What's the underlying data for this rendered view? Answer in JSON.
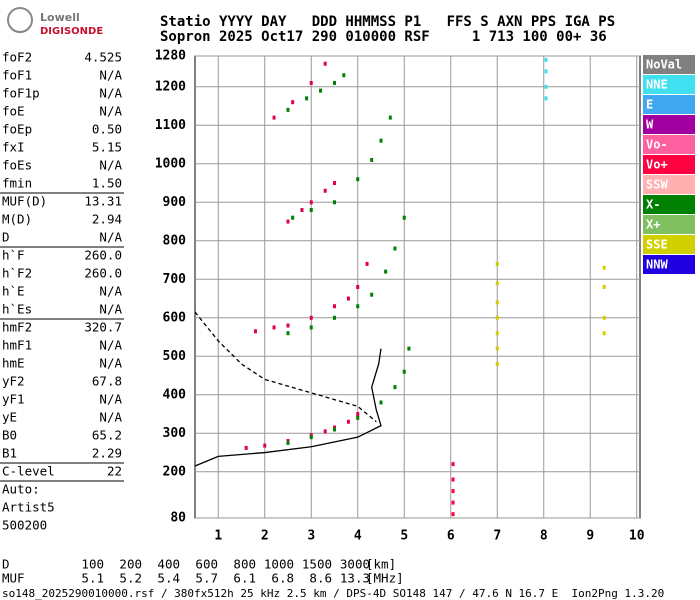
{
  "header": {
    "logo_top": "Lowell",
    "logo_bottom": "DIGISONDE",
    "line1": "Statio YYYY DAY   DDD HHMMSS P1   FFS S AXN PPS IGA PS",
    "line2": "Sopron 2025 Oct17 290 010000 RSF     1 713 100 00+ 36"
  },
  "parameters": [
    [
      [
        "foF2",
        "4.525"
      ],
      [
        "foF1",
        "N/A"
      ],
      [
        "foF1p",
        "N/A"
      ],
      [
        "foE",
        "N/A"
      ],
      [
        "foEp",
        "0.50"
      ],
      [
        "fxI",
        "5.15"
      ],
      [
        "foEs",
        "N/A"
      ],
      [
        "fmin",
        "1.50"
      ]
    ],
    [
      [
        "MUF(D)",
        "13.31"
      ],
      [
        "M(D)",
        "2.94"
      ],
      [
        "D",
        "N/A"
      ]
    ],
    [
      [
        "h`F",
        "260.0"
      ],
      [
        "h`F2",
        "260.0"
      ],
      [
        "h`E",
        "N/A"
      ],
      [
        "h`Es",
        "N/A"
      ]
    ],
    [
      [
        "hmF2",
        "320.7"
      ],
      [
        "hmF1",
        "N/A"
      ],
      [
        "hmE",
        "N/A"
      ],
      [
        "yF2",
        "67.8"
      ],
      [
        "yF1",
        "N/A"
      ],
      [
        "yE",
        "N/A"
      ],
      [
        "B0",
        "65.2"
      ],
      [
        "B1",
        "2.29"
      ]
    ],
    [
      [
        "C-level",
        "22"
      ]
    ]
  ],
  "operator": [
    "Auto:",
    "Artist5",
    "500200"
  ],
  "chart_data": {
    "type": "scatter",
    "xlim": [
      0.5,
      10.07
    ],
    "ylim": [
      80,
      1280
    ],
    "xticks": [
      1,
      2,
      3,
      4,
      5,
      6,
      7,
      8,
      9,
      10
    ],
    "yticks": [
      80,
      200,
      300,
      400,
      500,
      600,
      700,
      800,
      900,
      1000,
      1100,
      1200,
      1280
    ],
    "grid": true,
    "legend": [
      {
        "label": "NoVal",
        "color": "#808080"
      },
      {
        "label": "NNE",
        "color": "#40e0f0"
      },
      {
        "label": "E",
        "color": "#40a8f0"
      },
      {
        "label": "W",
        "color": "#a000a0"
      },
      {
        "label": "Vo-",
        "color": "#ff60a0"
      },
      {
        "label": "Vo+",
        "color": "#ff0040"
      },
      {
        "label": "SSW",
        "color": "#ffb0b0"
      },
      {
        "label": "X-",
        "color": "#008000"
      },
      {
        "label": "X+",
        "color": "#80c060"
      },
      {
        "label": "SSE",
        "color": "#d0d000"
      },
      {
        "label": "NNW",
        "color": "#2000e0"
      }
    ],
    "series": [
      {
        "color": "#e00050",
        "x": [
          1.6,
          2.0,
          2.5,
          3.0,
          3.3,
          3.5,
          3.8,
          4.0
        ],
        "values": [
          262,
          268,
          280,
          295,
          305,
          315,
          330,
          350
        ]
      },
      {
        "color": "#008000",
        "x": [
          2.5,
          3.0,
          3.5,
          4.0,
          4.5,
          4.8,
          5.0,
          5.1
        ],
        "values": [
          275,
          290,
          310,
          340,
          380,
          420,
          460,
          520
        ]
      },
      {
        "color": "#e00050",
        "x": [
          1.8,
          2.2,
          2.5,
          3.0,
          3.5,
          3.8,
          4.0,
          4.2
        ],
        "values": [
          565,
          575,
          580,
          600,
          630,
          650,
          680,
          740
        ]
      },
      {
        "color": "#008000",
        "x": [
          2.5,
          3.0,
          3.5,
          4.0,
          4.3,
          4.6,
          4.8,
          5.0
        ],
        "values": [
          560,
          575,
          600,
          630,
          660,
          720,
          780,
          860
        ]
      },
      {
        "color": "#e00050",
        "x": [
          2.5,
          2.8,
          3.0,
          3.3,
          3.5
        ],
        "values": [
          850,
          880,
          900,
          930,
          950
        ]
      },
      {
        "color": "#008000",
        "x": [
          2.6,
          3.0,
          3.5,
          4.0,
          4.3,
          4.5,
          4.7
        ],
        "values": [
          860,
          880,
          900,
          960,
          1010,
          1060,
          1120
        ]
      },
      {
        "color": "#e00050",
        "x": [
          2.2,
          2.6,
          3.0,
          3.3
        ],
        "values": [
          1120,
          1160,
          1210,
          1260
        ]
      },
      {
        "color": "#008000",
        "x": [
          2.5,
          2.9,
          3.2,
          3.5,
          3.7
        ],
        "values": [
          1140,
          1170,
          1190,
          1210,
          1230
        ]
      },
      {
        "color": "#d0d000",
        "x": [
          7.0,
          7.0,
          7.0,
          7.0,
          7.0,
          7.0,
          7.0
        ],
        "values": [
          480,
          520,
          560,
          600,
          640,
          690,
          740
        ]
      },
      {
        "color": "#ff0040",
        "x": [
          6.05,
          6.05,
          6.05,
          6.05,
          6.05
        ],
        "values": [
          90,
          120,
          150,
          180,
          220
        ]
      },
      {
        "color": "#40e0f0",
        "x": [
          8.05,
          8.05,
          8.05,
          8.05
        ],
        "values": [
          1170,
          1200,
          1240,
          1270
        ]
      },
      {
        "color": "#d0d000",
        "x": [
          9.3,
          9.3,
          9.3,
          9.3
        ],
        "values": [
          560,
          600,
          680,
          730
        ]
      },
      {
        "color": "#000000",
        "mode": "line",
        "x": [
          0.5,
          1.0,
          2.0,
          3.0,
          4.0,
          4.5,
          4.4,
          4.3,
          4.45,
          4.5
        ],
        "values": [
          215,
          240,
          250,
          265,
          290,
          320,
          360,
          420,
          480,
          520
        ]
      },
      {
        "color": "#000000",
        "mode": "line",
        "dash": true,
        "x": [
          0.5,
          1.0,
          1.5,
          2.0,
          3.0,
          4.0,
          4.4
        ],
        "values": [
          615,
          540,
          480,
          440,
          405,
          370,
          330
        ]
      }
    ]
  },
  "muf_table": {
    "rows": [
      [
        "D",
        "100",
        "200",
        "400",
        "600",
        "800",
        "1000",
        "1500",
        "3000",
        "[km]"
      ],
      [
        "MUF",
        "5.1",
        "5.2",
        "5.4",
        "5.7",
        "6.1",
        "6.8",
        "8.6",
        "13.3",
        "[MHz]"
      ]
    ]
  },
  "footer": "so148_2025290010000.rsf / 380fx512h 25 kHz 2.5 km / DPS-4D SO148 147 / 47.6 N 16.7 E  Ion2Png 1.3.20"
}
